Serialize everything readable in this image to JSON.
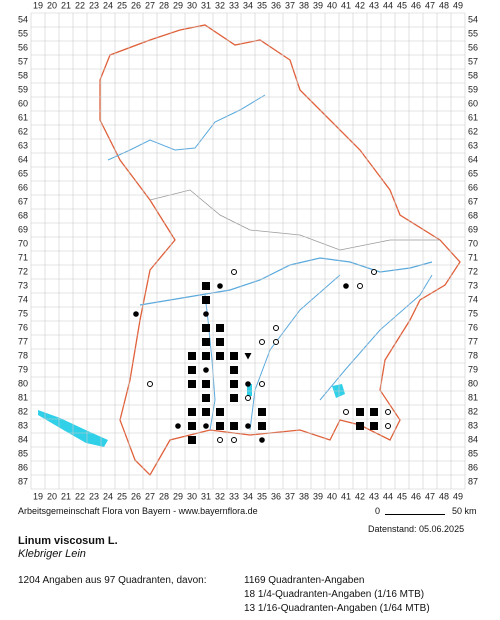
{
  "grid": {
    "columns": [
      19,
      20,
      21,
      22,
      23,
      24,
      25,
      26,
      27,
      28,
      29,
      30,
      31,
      32,
      33,
      34,
      35,
      36,
      37,
      38,
      39,
      40,
      41,
      42,
      43,
      44,
      45,
      46,
      47,
      48,
      49
    ],
    "rows": [
      54,
      55,
      56,
      57,
      58,
      59,
      60,
      61,
      62,
      63,
      64,
      65,
      66,
      67,
      68,
      69,
      70,
      71,
      72,
      73,
      74,
      75,
      76,
      77,
      78,
      79,
      80,
      81,
      82,
      83,
      84,
      85,
      86,
      87
    ]
  },
  "records": [
    {
      "col": 31,
      "row": 73,
      "symbol": "square"
    },
    {
      "col": 31,
      "row": 74,
      "symbol": "square"
    },
    {
      "col": 31,
      "row": 75,
      "symbol": "dot"
    },
    {
      "col": 31,
      "row": 76,
      "symbol": "square"
    },
    {
      "col": 31,
      "row": 77,
      "symbol": "square"
    },
    {
      "col": 31,
      "row": 78,
      "symbol": "square"
    },
    {
      "col": 31,
      "row": 79,
      "symbol": "dot"
    },
    {
      "col": 31,
      "row": 80,
      "symbol": "square"
    },
    {
      "col": 31,
      "row": 81,
      "symbol": "square"
    },
    {
      "col": 31,
      "row": 82,
      "symbol": "square"
    },
    {
      "col": 31,
      "row": 83,
      "symbol": "dot"
    },
    {
      "col": 30,
      "row": 78,
      "symbol": "square"
    },
    {
      "col": 30,
      "row": 79,
      "symbol": "square"
    },
    {
      "col": 30,
      "row": 80,
      "symbol": "square"
    },
    {
      "col": 30,
      "row": 82,
      "symbol": "square"
    },
    {
      "col": 30,
      "row": 83,
      "symbol": "square"
    },
    {
      "col": 30,
      "row": 84,
      "symbol": "square"
    },
    {
      "col": 29,
      "row": 83,
      "symbol": "dot"
    },
    {
      "col": 32,
      "row": 73,
      "symbol": "dot"
    },
    {
      "col": 32,
      "row": 76,
      "symbol": "square"
    },
    {
      "col": 32,
      "row": 77,
      "symbol": "square"
    },
    {
      "col": 32,
      "row": 78,
      "symbol": "square"
    },
    {
      "col": 32,
      "row": 82,
      "symbol": "square"
    },
    {
      "col": 32,
      "row": 83,
      "symbol": "square"
    },
    {
      "col": 32,
      "row": 84,
      "symbol": "ring"
    },
    {
      "col": 33,
      "row": 72,
      "symbol": "ring"
    },
    {
      "col": 33,
      "row": 78,
      "symbol": "square"
    },
    {
      "col": 33,
      "row": 79,
      "symbol": "square"
    },
    {
      "col": 33,
      "row": 80,
      "symbol": "square"
    },
    {
      "col": 33,
      "row": 81,
      "symbol": "square"
    },
    {
      "col": 33,
      "row": 83,
      "symbol": "square"
    },
    {
      "col": 33,
      "row": 84,
      "symbol": "ring"
    },
    {
      "col": 34,
      "row": 78,
      "symbol": "triangle"
    },
    {
      "col": 34,
      "row": 80,
      "symbol": "dot"
    },
    {
      "col": 34,
      "row": 81,
      "symbol": "ring"
    },
    {
      "col": 34,
      "row": 83,
      "symbol": "dot"
    },
    {
      "col": 35,
      "row": 77,
      "symbol": "ring"
    },
    {
      "col": 35,
      "row": 80,
      "symbol": "ring"
    },
    {
      "col": 35,
      "row": 82,
      "symbol": "square"
    },
    {
      "col": 35,
      "row": 83,
      "symbol": "square"
    },
    {
      "col": 35,
      "row": 84,
      "symbol": "dot"
    },
    {
      "col": 36,
      "row": 76,
      "symbol": "ring"
    },
    {
      "col": 36,
      "row": 77,
      "symbol": "ring"
    },
    {
      "col": 41,
      "row": 73,
      "symbol": "dot"
    },
    {
      "col": 42,
      "row": 73,
      "symbol": "ring"
    },
    {
      "col": 43,
      "row": 72,
      "symbol": "ring"
    },
    {
      "col": 26,
      "row": 75,
      "symbol": "dot"
    },
    {
      "col": 27,
      "row": 80,
      "symbol": "ring"
    },
    {
      "col": 41,
      "row": 82,
      "symbol": "ring"
    },
    {
      "col": 42,
      "row": 82,
      "symbol": "square"
    },
    {
      "col": 42,
      "row": 83,
      "symbol": "square"
    },
    {
      "col": 43,
      "row": 82,
      "symbol": "square"
    },
    {
      "col": 43,
      "row": 83,
      "symbol": "square"
    },
    {
      "col": 44,
      "row": 82,
      "symbol": "ring"
    },
    {
      "col": 44,
      "row": 83,
      "symbol": "ring"
    }
  ],
  "footer": {
    "credit": "Arbeitsgemeinschaft Flora von Bayern - www.bayernflora.de",
    "scale_start": "0",
    "scale_end": "50 km",
    "date": "Datenstand: 05.06.2025"
  },
  "species": {
    "name": "Linum viscosum L.",
    "common_name": "Klebriger Lein"
  },
  "stats": {
    "summary": "1204 Angaben aus 97 Quadranten, davon:",
    "lines": [
      "1169 Quadranten-Angaben",
      "18 1/4-Quadranten-Angaben (1/16 MTB)",
      "13 1/16-Quadranten-Angaben (1/64 MTB)"
    ]
  }
}
